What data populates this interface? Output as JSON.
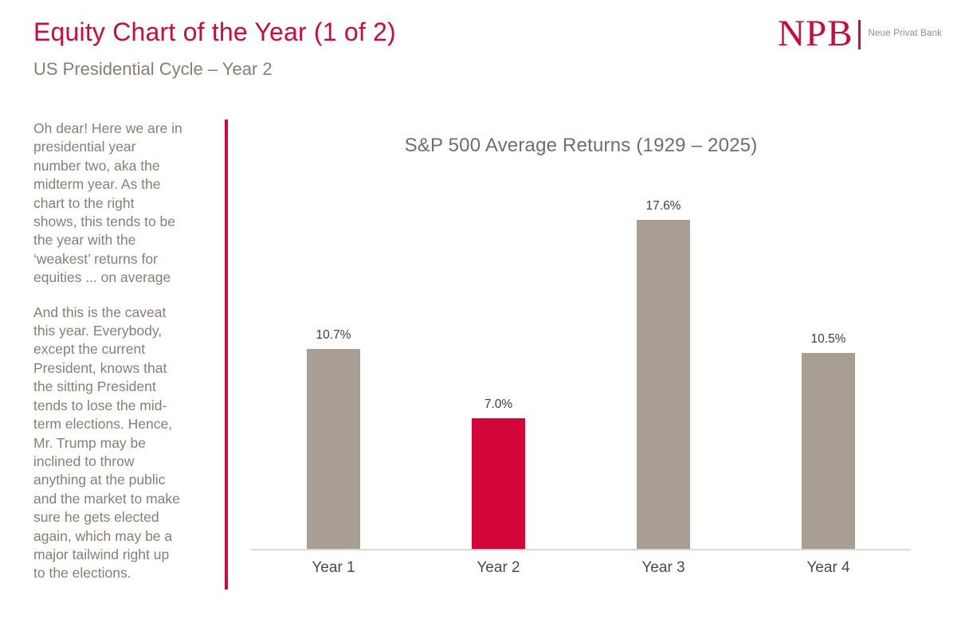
{
  "header": {
    "title": "Equity Chart of the Year (1 of 2)",
    "subtitle": "US Presidential Cycle – Year 2"
  },
  "logo": {
    "abbr": "NPB",
    "name": "Neue Privat Bank"
  },
  "sidebar": {
    "paragraph1": [
      "Oh dear! Here we are in",
      "presidential year",
      "number two, aka the",
      "midterm year. As the",
      "chart to the right",
      "shows, this tends to be",
      "the year with the",
      "‘weakest’ returns for",
      "equities ... on average"
    ],
    "paragraph2": [
      "And this is the caveat",
      "this year. Everybody,",
      "except the current",
      "President, knows that",
      "the sitting President",
      "tends to lose the mid-",
      "term elections. Hence,",
      "Mr. Trump may be",
      "inclined to throw",
      "anything at the public",
      "and the market to make",
      "sure he gets elected",
      "again, which may be a",
      "major tailwind right up",
      "to the elections."
    ]
  },
  "chart_data": {
    "type": "bar",
    "title": "S&P 500 Average Returns (1929 – 2025)",
    "categories": [
      "Year 1",
      "Year 2",
      "Year 3",
      "Year 4"
    ],
    "values": [
      10.7,
      7.0,
      17.6,
      10.5
    ],
    "value_labels": [
      "10.7%",
      "7.0%",
      "17.6%",
      "10.5%"
    ],
    "bar_colors": [
      "#a89e94",
      "#d20639",
      "#a89e94",
      "#a89e94"
    ],
    "highlighted_category": "Year 2",
    "xlabel": "",
    "ylabel": "",
    "ylim": [
      0,
      18.8
    ],
    "grid": false,
    "legend": null
  },
  "colors": {
    "accent_red": "#ce0a3c",
    "bar_taupe": "#a89e94",
    "bar_red": "#d20639",
    "sidebar_text": "#8a7d72",
    "chart_title_gray": "#6e6e6e",
    "axis_line_gray": "#dadada",
    "value_label_dark": "#3d3d3d"
  }
}
